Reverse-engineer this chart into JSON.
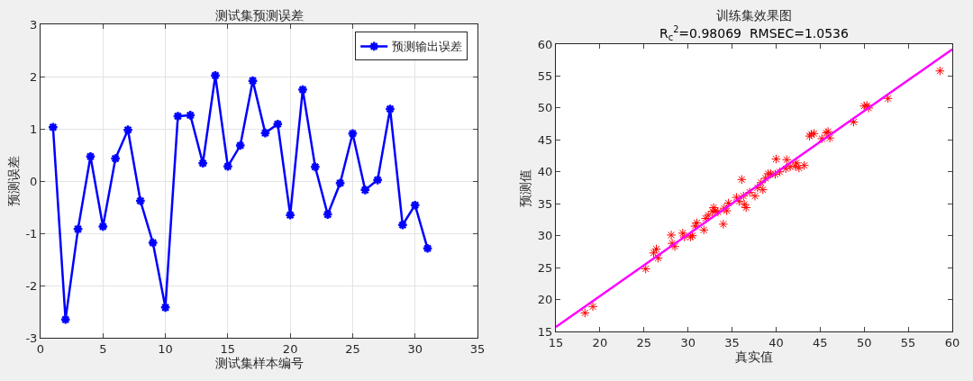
{
  "chart_data": [
    {
      "type": "line",
      "title": "测试集预测误差",
      "xlabel": "测试集样本编号",
      "ylabel": "预测误差",
      "x": [
        1,
        2,
        3,
        4,
        5,
        6,
        7,
        8,
        9,
        10,
        11,
        12,
        13,
        14,
        15,
        16,
        17,
        18,
        19,
        20,
        21,
        22,
        23,
        24,
        25,
        26,
        27,
        28,
        29,
        30,
        31
      ],
      "series": [
        {
          "name": "预测输出误差",
          "color": "#0000ff",
          "values": [
            1.03,
            -2.65,
            -0.92,
            0.47,
            -0.87,
            0.43,
            0.98,
            -0.38,
            -1.18,
            -2.42,
            1.24,
            1.26,
            0.34,
            2.02,
            0.28,
            0.68,
            1.92,
            0.92,
            1.09,
            -0.65,
            1.75,
            0.27,
            -0.64,
            -0.04,
            0.91,
            -0.17,
            0.02,
            1.38,
            -0.84,
            -0.46,
            -1.29
          ]
        }
      ],
      "xlim": [
        0,
        35
      ],
      "xticks": [
        0,
        5,
        10,
        15,
        20,
        25,
        30,
        35
      ],
      "ylim": [
        -3,
        3
      ],
      "yticks": [
        -3,
        -2,
        -1,
        0,
        1,
        2,
        3
      ],
      "grid": true,
      "legend": "top right",
      "marker": "cross",
      "line_style": "solid"
    },
    {
      "type": "scatter",
      "title": "训练集效果图",
      "subtitle": "R$_{c}$$^{2}$=0.98069  RMSEC=1.0536",
      "xlabel": "真实值",
      "ylabel": "预测值",
      "series": [
        {
          "type": "scatter",
          "color": "#ff0000",
          "x": [
            18.3,
            19.2,
            25.2,
            26.1,
            26.4,
            26.6,
            28.1,
            28.2,
            28.5,
            29.4,
            29.6,
            30.3,
            30.5,
            30.8,
            31.0,
            31.8,
            32.0,
            32.3,
            32.8,
            32.9,
            33.1,
            33.4,
            34.0,
            34.1,
            34.4,
            34.6,
            35.5,
            35.8,
            36.1,
            36.3,
            36.4,
            36.6,
            37.0,
            37.6,
            37.9,
            38.3,
            38.5,
            38.8,
            39.1,
            39.4,
            39.9,
            40.0,
            40.4,
            41.1,
            41.2,
            41.6,
            42.2,
            42.3,
            42.6,
            43.2,
            43.8,
            44.0,
            44.3,
            45.2,
            45.7,
            45.9,
            46.1,
            48.8,
            50.0,
            50.3,
            50.5,
            52.7,
            58.6
          ],
          "values": [
            17.9,
            18.9,
            24.8,
            27.3,
            27.9,
            26.5,
            30.1,
            28.8,
            28.3,
            30.4,
            29.8,
            29.8,
            30.0,
            31.5,
            32.0,
            30.9,
            32.7,
            33.2,
            33.8,
            34.4,
            33.9,
            33.7,
            31.8,
            34.3,
            33.9,
            35.1,
            36.0,
            35.4,
            38.8,
            36.2,
            34.9,
            34.4,
            36.8,
            36.2,
            37.5,
            38.3,
            37.2,
            39.0,
            39.7,
            39.7,
            39.6,
            42.0,
            40.0,
            40.5,
            41.9,
            40.8,
            40.9,
            41.4,
            40.6,
            41.0,
            45.6,
            45.9,
            46.0,
            45.2,
            46.1,
            46.3,
            45.3,
            47.8,
            50.3,
            50.4,
            50.0,
            51.5,
            55.8
          ]
        },
        {
          "type": "line",
          "color": "#ff00ff",
          "marker": "none",
          "x": [
            15,
            60
          ],
          "values": [
            15.7,
            59.2
          ]
        }
      ],
      "xlim": [
        15,
        60
      ],
      "xticks": [
        15,
        20,
        25,
        30,
        35,
        40,
        45,
        50,
        55,
        60
      ],
      "ylim": [
        15,
        60
      ],
      "yticks": [
        15,
        20,
        25,
        30,
        35,
        40,
        45,
        50,
        55,
        60
      ],
      "grid": false,
      "legend": false,
      "marker": "cross"
    }
  ]
}
